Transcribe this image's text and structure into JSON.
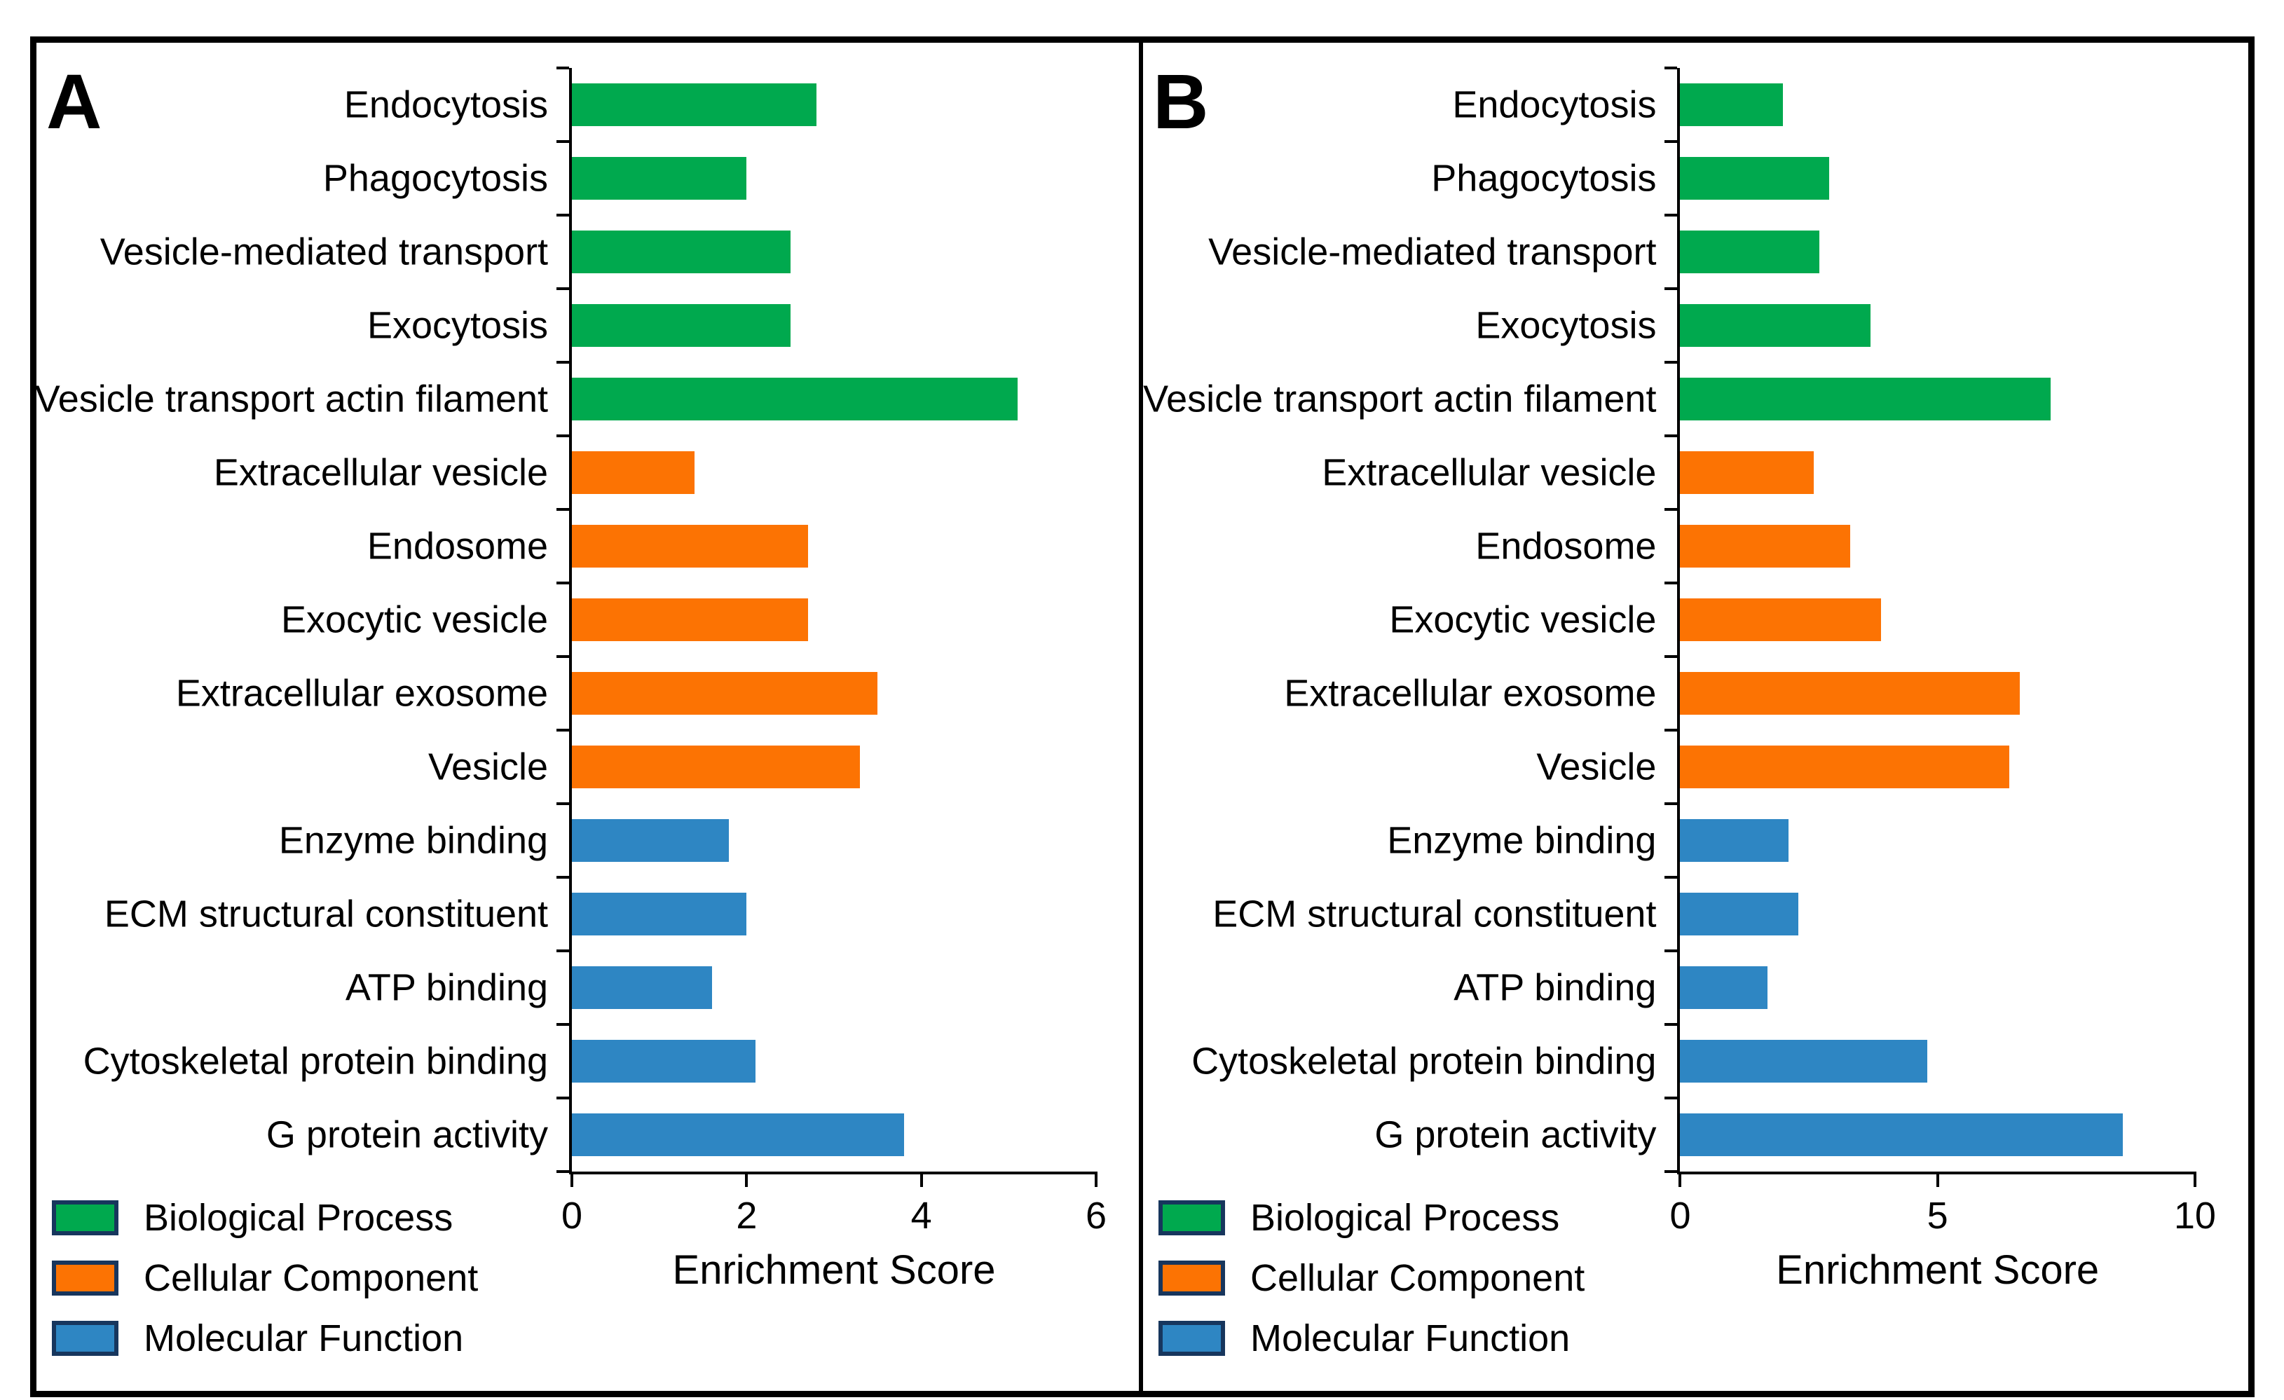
{
  "xlabel": "Enrichment Score",
  "colors": {
    "bp": "#00a94e",
    "cc": "#fc7303",
    "mf": "#2e86c3",
    "swatch_border": "#17365d",
    "axis": "#000000"
  },
  "legend": [
    {
      "label": "Biological Process",
      "group": "bp"
    },
    {
      "label": "Cellular Component",
      "group": "cc"
    },
    {
      "label": "Molecular Function",
      "group": "mf"
    }
  ],
  "chart_data": [
    {
      "type": "bar",
      "panel_label": "A",
      "orientation": "horizontal",
      "title": "",
      "xlabel": "Enrichment Score",
      "ylabel": "",
      "xlim": [
        0,
        6
      ],
      "xticks": [
        0,
        2,
        4,
        6
      ],
      "grid": false,
      "legend_position": "bottom-left",
      "categories": [
        "Endocytosis",
        "Phagocytosis",
        "Vesicle-mediated transport",
        "Exocytosis",
        "Vesicle transport actin filament",
        "Extracellular vesicle",
        "Endosome",
        "Exocytic vesicle",
        "Extracellular exosome",
        "Vesicle",
        "Enzyme binding",
        "ECM structural constituent",
        "ATP binding",
        "Cytoskeletal protein binding",
        "G protein activity"
      ],
      "groups": [
        "bp",
        "bp",
        "bp",
        "bp",
        "bp",
        "cc",
        "cc",
        "cc",
        "cc",
        "cc",
        "mf",
        "mf",
        "mf",
        "mf",
        "mf"
      ],
      "series": [
        {
          "name": "Enrichment Score",
          "values": [
            2.8,
            2.0,
            2.5,
            2.5,
            5.1,
            1.4,
            2.7,
            2.7,
            3.5,
            3.3,
            1.8,
            2.0,
            1.6,
            2.1,
            3.8
          ]
        }
      ]
    },
    {
      "type": "bar",
      "panel_label": "B",
      "orientation": "horizontal",
      "title": "",
      "xlabel": "Enrichment Score",
      "ylabel": "",
      "xlim": [
        0,
        10
      ],
      "xticks": [
        0,
        5,
        10
      ],
      "grid": false,
      "legend_position": "bottom-left",
      "categories": [
        "Endocytosis",
        "Phagocytosis",
        "Vesicle-mediated transport",
        "Exocytosis",
        "Vesicle transport actin filament",
        "Extracellular vesicle",
        "Endosome",
        "Exocytic vesicle",
        "Extracellular exosome",
        "Vesicle",
        "Enzyme binding",
        "ECM structural constituent",
        "ATP binding",
        "Cytoskeletal protein binding",
        "G protein activity"
      ],
      "groups": [
        "bp",
        "bp",
        "bp",
        "bp",
        "bp",
        "cc",
        "cc",
        "cc",
        "cc",
        "cc",
        "mf",
        "mf",
        "mf",
        "mf",
        "mf"
      ],
      "series": [
        {
          "name": "Enrichment Score",
          "values": [
            2.0,
            2.9,
            2.7,
            3.7,
            7.2,
            2.6,
            3.3,
            3.9,
            6.6,
            6.4,
            2.1,
            2.3,
            1.7,
            4.8,
            8.6
          ]
        }
      ]
    }
  ]
}
